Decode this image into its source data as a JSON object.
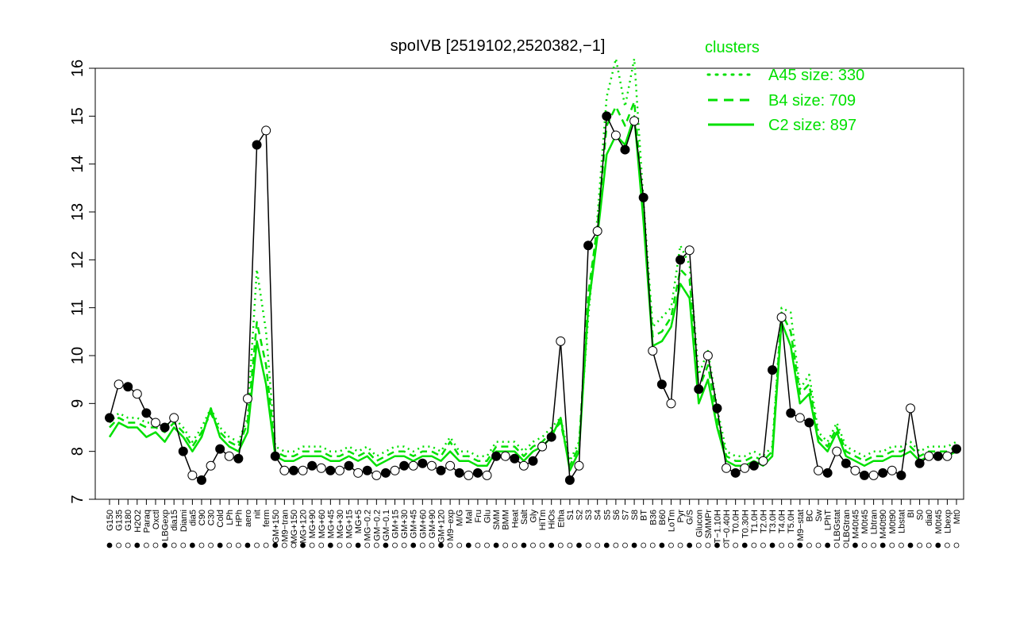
{
  "chart_data": {
    "type": "line",
    "title": "spoIVB [2519102,2520382,−1]",
    "xlabel": "",
    "ylabel": "",
    "ylim": [
      7,
      16
    ],
    "yticks": [
      7,
      8,
      9,
      10,
      11,
      12,
      13,
      14,
      15,
      16
    ],
    "xtick_labels": [
      "G150",
      "G135",
      "G180",
      "H2O2",
      "Paraq",
      "Oxctl",
      "LBGexp",
      "dia15",
      "Diami",
      "dia5",
      "C90",
      "C30",
      "Cold",
      "LPh",
      "HPh",
      "aero",
      "nit",
      "ferm",
      "GM+150",
      "M9−tran",
      "MG+150",
      "MG+120",
      "MG+90",
      "MG+60",
      "MG+45",
      "MG+30",
      "MG+15",
      "MG+5",
      "MG−0.2",
      "GM−0.2",
      "GM−0.1",
      "GM+15",
      "GM+30",
      "GM+45",
      "GM+60",
      "GM+90",
      "GM+120",
      "M9−exp",
      "M/G",
      "Mal",
      "Fru",
      "Glu",
      "SMM",
      "BMM",
      "Heat",
      "Salt",
      "Gly",
      "HiTm",
      "HiOs",
      "Etha",
      "S1",
      "S2",
      "S3",
      "S4",
      "S5",
      "S6",
      "S7",
      "S8",
      "BT",
      "B36",
      "B60",
      "LoTm",
      "Pyr",
      "G/S",
      "Glucon",
      "SMMPr",
      "T−1.10H",
      "T−0.40H",
      "T0.0H",
      "T0.30H",
      "T1.0H",
      "T2.0H",
      "T3.0H",
      "T4.0H",
      "T5.0H",
      "M9−stat",
      "BC",
      "Sw",
      "LPhT",
      "LBGstat",
      "LBGtran",
      "M40t45",
      "M0t45",
      "Lbtran",
      "M40t90",
      "M0t90",
      "Lbstat",
      "BI",
      "S0",
      "dia0",
      "M0t45",
      "Lbexp",
      "Mt0"
    ],
    "legend": {
      "title": "clusters",
      "position": "top-right",
      "entries": [
        "A45 size: 330",
        "B4 size: 709",
        "C2 size: 897"
      ]
    },
    "series": [
      {
        "name": "C2 size: 897",
        "style": "solid",
        "values": [
          8.3,
          8.6,
          8.5,
          8.5,
          8.3,
          8.4,
          8.2,
          8.5,
          8.3,
          8.0,
          8.3,
          8.9,
          8.3,
          8.1,
          8.0,
          8.4,
          10.3,
          9.4,
          7.9,
          7.8,
          7.8,
          7.9,
          7.9,
          7.9,
          7.8,
          7.8,
          7.9,
          7.8,
          7.9,
          7.7,
          7.8,
          7.9,
          7.9,
          7.8,
          7.9,
          7.9,
          7.8,
          8.0,
          7.8,
          7.8,
          7.7,
          7.7,
          8.0,
          8.0,
          8.0,
          7.8,
          8.0,
          8.1,
          8.3,
          8.7,
          7.6,
          8.0,
          11.0,
          12.5,
          14.2,
          14.6,
          14.4,
          15.0,
          12.8,
          10.2,
          10.3,
          10.6,
          11.5,
          11.2,
          9.0,
          9.5,
          8.5,
          7.8,
          7.7,
          7.7,
          7.8,
          7.7,
          7.9,
          10.7,
          10.2,
          9.0,
          9.2,
          8.2,
          8.0,
          8.4,
          7.9,
          7.8,
          7.7,
          7.8,
          7.8,
          7.9,
          7.9,
          8.0,
          7.8,
          7.9,
          7.9,
          7.9,
          8.0
        ]
      },
      {
        "name": "B4 size: 709",
        "style": "dashed",
        "values": [
          8.5,
          8.7,
          8.6,
          8.6,
          8.5,
          8.5,
          8.4,
          8.6,
          8.4,
          8.1,
          8.4,
          8.8,
          8.4,
          8.2,
          8.1,
          8.6,
          10.7,
          9.8,
          8.0,
          7.9,
          7.9,
          8.0,
          8.0,
          8.0,
          7.9,
          7.9,
          8.0,
          7.9,
          8.0,
          7.8,
          7.9,
          8.0,
          8.0,
          7.9,
          8.0,
          8.0,
          7.9,
          8.2,
          7.9,
          7.9,
          7.8,
          7.8,
          8.1,
          8.1,
          8.1,
          7.9,
          8.1,
          8.2,
          8.4,
          8.6,
          7.7,
          8.1,
          11.3,
          12.7,
          14.8,
          15.2,
          14.8,
          15.3,
          13.0,
          10.4,
          10.5,
          10.8,
          11.8,
          11.6,
          9.3,
          9.8,
          8.7,
          7.9,
          7.8,
          7.8,
          7.9,
          7.8,
          8.0,
          10.9,
          10.5,
          9.2,
          9.4,
          8.3,
          8.1,
          8.5,
          8.0,
          7.9,
          7.8,
          7.9,
          7.9,
          8.0,
          8.0,
          8.1,
          7.9,
          8.0,
          8.0,
          8.0,
          8.1
        ]
      },
      {
        "name": "A45 size: 330",
        "style": "dotted",
        "values": [
          8.6,
          8.8,
          8.7,
          8.7,
          8.6,
          8.6,
          8.5,
          8.7,
          8.5,
          8.2,
          8.5,
          8.9,
          8.5,
          8.3,
          8.2,
          8.7,
          11.8,
          10.5,
          8.1,
          8.0,
          8.0,
          8.1,
          8.1,
          8.1,
          8.0,
          8.0,
          8.1,
          8.0,
          8.1,
          7.9,
          8.0,
          8.1,
          8.1,
          8.0,
          8.1,
          8.1,
          8.0,
          8.3,
          8.0,
          8.0,
          7.9,
          7.9,
          8.2,
          8.2,
          8.2,
          8.0,
          8.2,
          8.3,
          8.5,
          8.7,
          7.8,
          8.2,
          10.8,
          12.9,
          15.4,
          16.2,
          15.2,
          16.2,
          13.2,
          10.6,
          10.8,
          11.0,
          12.3,
          11.9,
          9.6,
          10.1,
          8.9,
          8.0,
          7.9,
          7.9,
          8.0,
          7.9,
          8.1,
          11.0,
          10.9,
          9.3,
          9.6,
          8.4,
          8.2,
          8.6,
          8.1,
          8.0,
          7.9,
          8.0,
          8.0,
          8.1,
          8.1,
          8.2,
          8.0,
          8.1,
          8.1,
          8.1,
          8.2
        ]
      },
      {
        "name": "",
        "style": "points",
        "values": [
          8.7,
          9.4,
          9.35,
          9.2,
          8.8,
          8.6,
          8.5,
          8.7,
          8.0,
          7.5,
          7.4,
          7.7,
          8.05,
          7.9,
          7.85,
          9.1,
          14.4,
          14.7,
          7.9,
          7.6,
          7.6,
          7.6,
          7.7,
          7.65,
          7.6,
          7.6,
          7.7,
          7.55,
          7.6,
          7.5,
          7.55,
          7.6,
          7.7,
          7.7,
          7.75,
          7.7,
          7.6,
          7.7,
          7.55,
          7.5,
          7.55,
          7.5,
          7.9,
          7.9,
          7.85,
          7.7,
          7.8,
          8.1,
          8.3,
          10.3,
          7.4,
          7.7,
          12.3,
          12.6,
          15.0,
          14.6,
          14.3,
          14.9,
          13.3,
          10.1,
          9.4,
          9.0,
          12.0,
          12.2,
          9.3,
          10.0,
          8.9,
          7.65,
          7.55,
          7.65,
          7.7,
          7.8,
          9.7,
          10.8,
          8.8,
          8.7,
          8.6,
          7.6,
          7.55,
          8.0,
          7.75,
          7.6,
          7.5,
          7.5,
          7.55,
          7.6,
          7.5,
          8.9,
          7.75,
          7.9,
          7.9,
          7.9,
          8.05
        ]
      }
    ],
    "colors": {
      "cluster_lines": "#00e000",
      "points": "#000000",
      "legend_text": "#00e000"
    }
  }
}
